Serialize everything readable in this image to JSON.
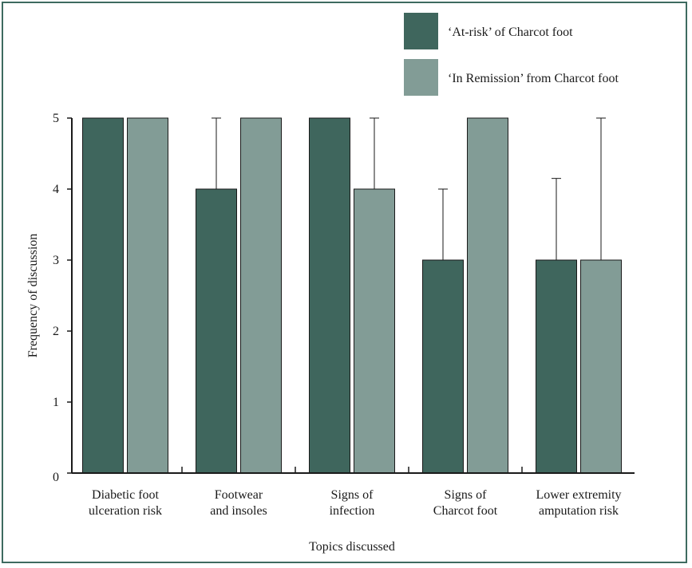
{
  "colors": {
    "frame": "#3e6b60",
    "at_risk": "#3f665d",
    "in_remission": "#829c96",
    "axis": "#1a1a1a"
  },
  "chart_data": {
    "type": "bar",
    "xlabel": "Topics discussed",
    "ylabel": "Frequency of discussion",
    "ylim": [
      0,
      5
    ],
    "yticks": [
      "0",
      "1",
      "2",
      "3",
      "4",
      "5"
    ],
    "categories": [
      [
        "Diabetic foot",
        "ulceration risk"
      ],
      [
        "Footwear",
        "and insoles"
      ],
      [
        "Signs of",
        "infection"
      ],
      [
        "Signs of",
        "Charcot foot"
      ],
      [
        "Lower extremity",
        "amputation risk"
      ]
    ],
    "series": [
      {
        "name": "‘At-risk’ of Charcot foot",
        "values": [
          5,
          4,
          5,
          3,
          3
        ],
        "error_upper": [
          5,
          5,
          5,
          4,
          4.15
        ]
      },
      {
        "name": "‘In Remission’ from Charcot foot",
        "values": [
          5,
          5,
          4,
          5,
          3
        ],
        "error_upper": [
          5,
          5,
          5,
          5,
          5
        ]
      }
    ],
    "legend_position": "top-right",
    "grid": false
  }
}
